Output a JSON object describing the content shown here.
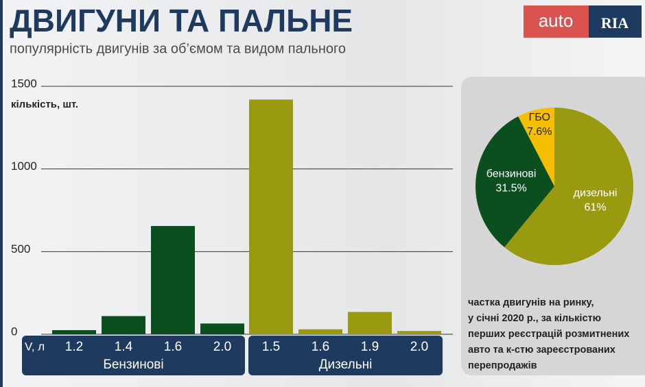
{
  "header": {
    "title": "ДВИГУНИ ТА ПАЛЬНЕ",
    "subtitle": "популярність двигунів за об’ємом та видом пального",
    "logo": [
      "auto",
      "RIA"
    ]
  },
  "chart_data": [
    {
      "type": "bar",
      "ylabel": "кількість, шт.",
      "xlabel": "V, л",
      "ylim": [
        0,
        1500
      ],
      "yticks": [
        0,
        500,
        1000,
        1500
      ],
      "grid": true,
      "series": [
        {
          "name": "Бензинові",
          "color": "#0b4f1f",
          "categories": [
            "1.2",
            "1.4",
            "1.6",
            "2.0"
          ],
          "values": [
            25,
            110,
            655,
            65
          ]
        },
        {
          "name": "Дизельні",
          "color": "#9a9a10",
          "categories": [
            "1.5",
            "1.6",
            "1.9",
            "2.0"
          ],
          "values": [
            1420,
            30,
            135,
            20
          ]
        }
      ]
    },
    {
      "type": "pie",
      "categories": [
        "дизельні",
        "бензинові",
        "ГБО"
      ],
      "values": [
        61,
        31.5,
        7.6
      ],
      "value_labels": [
        "61%",
        "31.5%",
        "7.6%"
      ],
      "colors": [
        "#9a9a10",
        "#0b4f1f",
        "#f5be00"
      ],
      "note": [
        "частка двигунів на ринку,",
        "у січні 2020 р., за кількістю",
        "перших реєстрацій розмитнених",
        "авто та к-стю зареєстрованих",
        "перепродажів"
      ]
    }
  ]
}
